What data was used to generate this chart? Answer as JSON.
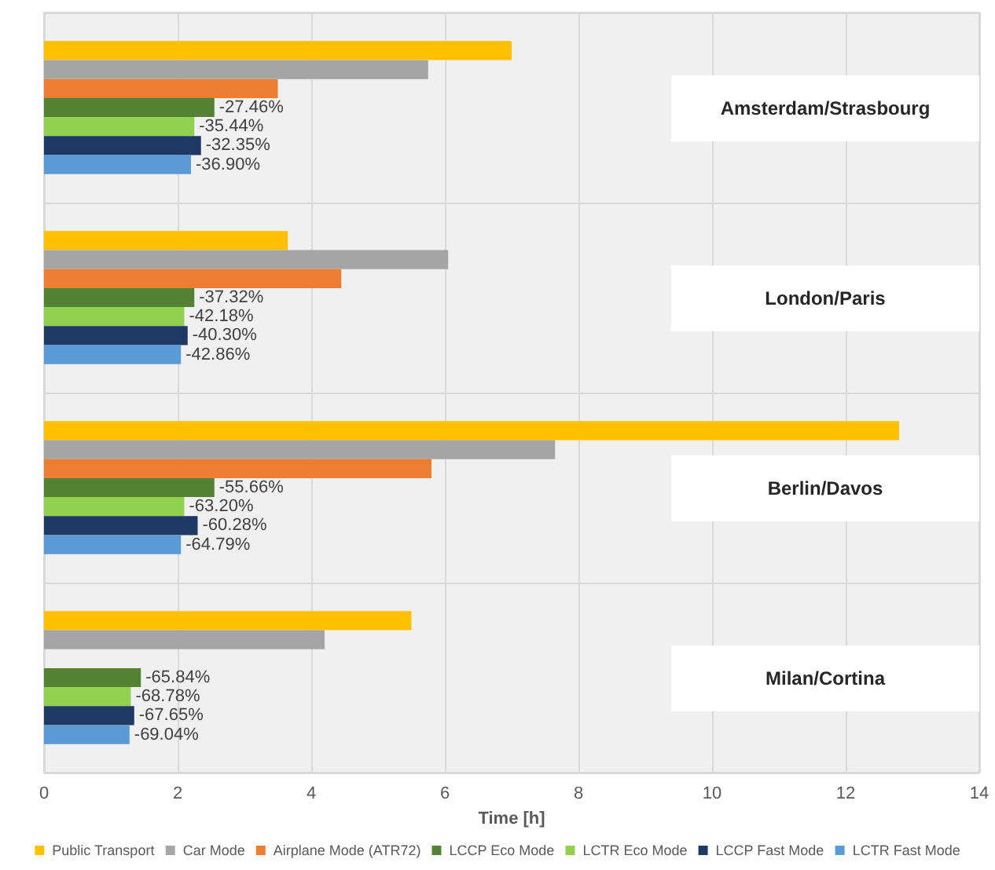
{
  "chart_data": {
    "type": "bar",
    "orientation": "horizontal",
    "xlabel": "Time [h]",
    "categories": [
      "Amsterdam/Strasbourg",
      "London/Paris",
      "Berlin/Davos",
      "Milan/Cortina"
    ],
    "series": [
      {
        "name": "Public Transport",
        "color": "#ffc000",
        "values": [
          7.0,
          3.65,
          12.8,
          5.5
        ]
      },
      {
        "name": "Car Mode",
        "color": "#a5a5a5",
        "values": [
          5.75,
          6.05,
          7.65,
          4.2
        ]
      },
      {
        "name": "Airplane Mode (ATR72)",
        "color": "#ed7d31",
        "values": [
          3.5,
          4.45,
          5.8,
          null
        ]
      },
      {
        "name": "LCCP Eco Mode",
        "color": "#548235",
        "values": [
          2.55,
          2.25,
          2.55,
          1.45
        ]
      },
      {
        "name": "LCTR Eco Mode",
        "color": "#92d050",
        "values": [
          2.25,
          2.1,
          2.1,
          1.3
        ]
      },
      {
        "name": "LCCP Fast Mode",
        "color": "#203864",
        "values": [
          2.35,
          2.15,
          2.3,
          1.35
        ]
      },
      {
        "name": "LCTR Fast Mode",
        "color": "#5b9bd5",
        "values": [
          2.2,
          2.05,
          2.05,
          1.28
        ]
      }
    ],
    "annotations": [
      "-27.46%",
      "-35.44%",
      "-32.35%",
      "-36.90%",
      "-37.32%",
      "-42.18%",
      "-40.30%",
      "-42.86%",
      "-55.66%",
      "-63.20%",
      "-60.28%",
      "-64.79%",
      "-65.84%",
      "-68.78%",
      "-67.65%",
      "-69.04%"
    ],
    "xlim": [
      0,
      14
    ],
    "xticks": [
      0,
      2,
      4,
      6,
      8,
      10,
      12,
      14
    ],
    "grid": true,
    "legend": "bottom"
  }
}
